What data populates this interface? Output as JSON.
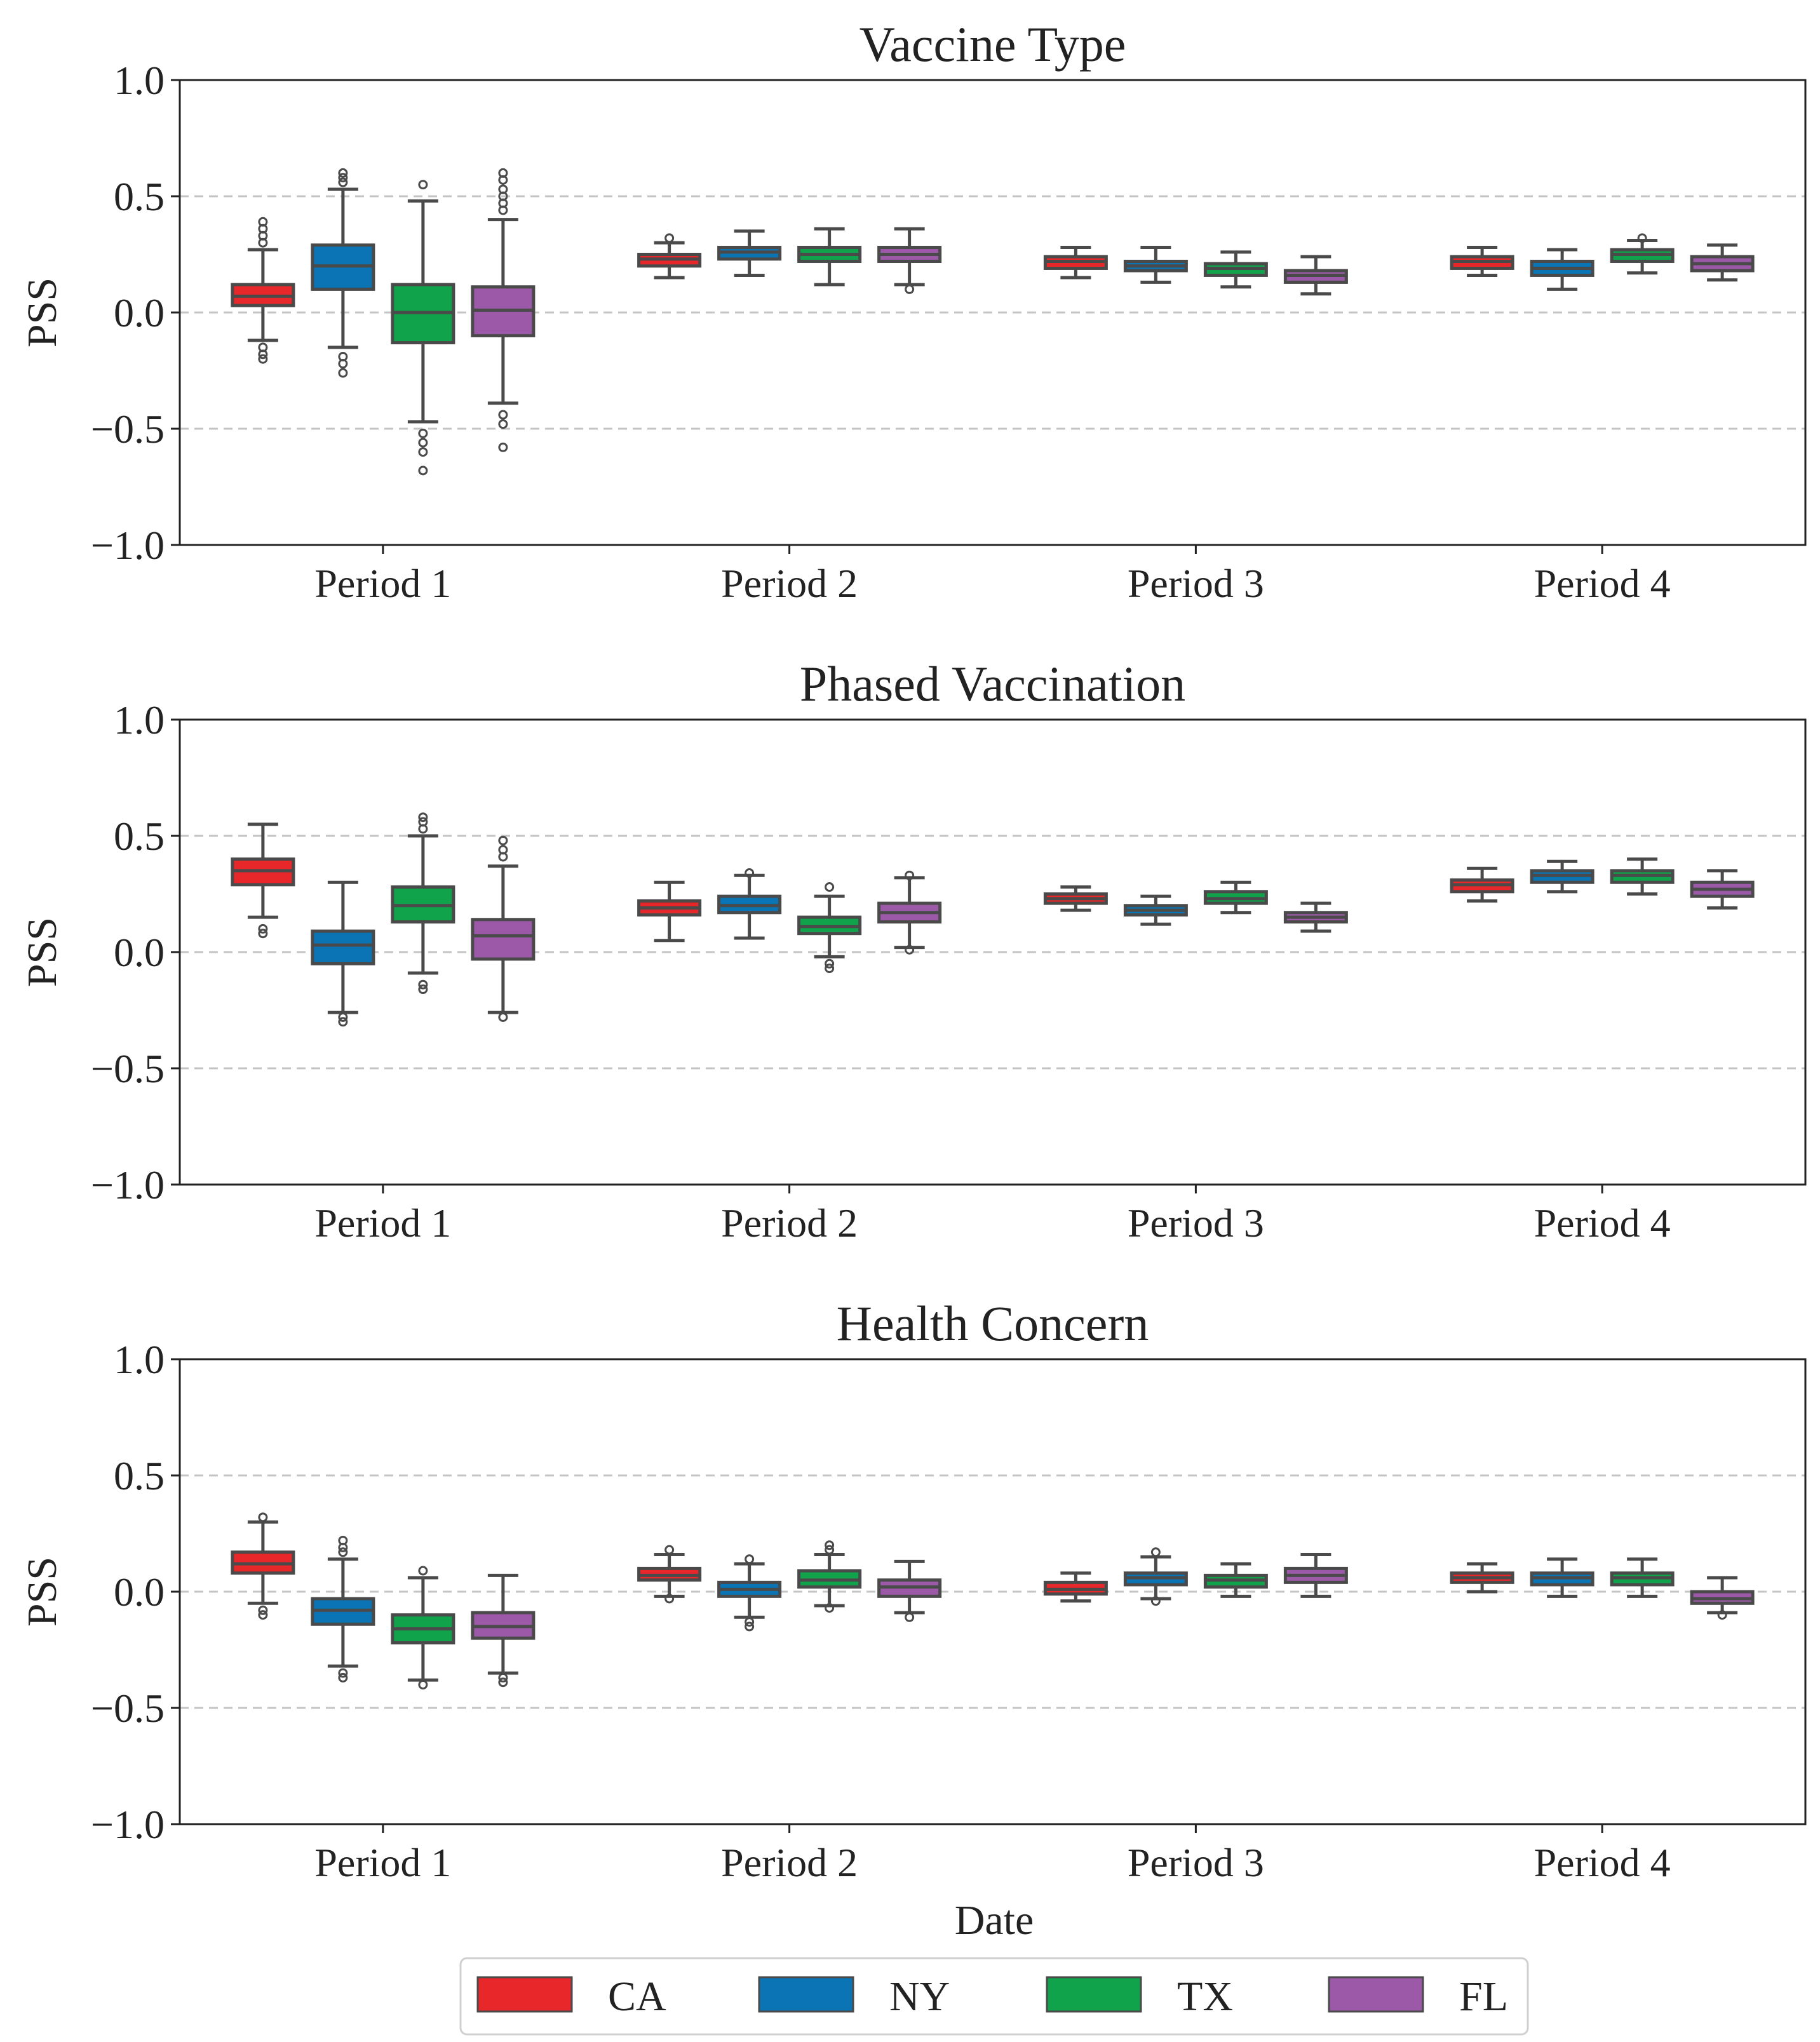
{
  "chart_data": {
    "type": "boxplot",
    "xlabel": "Date",
    "ylabel": "PSS",
    "ylim": [
      -1.0,
      1.0
    ],
    "yticks": [
      1.0,
      0.5,
      0.0,
      -0.5,
      -1.0
    ],
    "ytick_labels": [
      "1.0",
      "0.5",
      "0.0",
      "−0.5",
      "−1.0"
    ],
    "gridlines": [
      0.5,
      0.0,
      -0.5
    ],
    "categories": [
      "Period 1",
      "Period 2",
      "Period 3",
      "Period 4"
    ],
    "series": [
      {
        "name": "CA",
        "color": "#e8272a"
      },
      {
        "name": "NY",
        "color": "#0a74b4"
      },
      {
        "name": "TX",
        "color": "#11a34b"
      },
      {
        "name": "FL",
        "color": "#9b59a8"
      }
    ],
    "legend": {
      "position": "bottom-center"
    },
    "panels": [
      {
        "title": "Vaccine Type",
        "boxes": [
          [
            {
              "min": -0.12,
              "q1": 0.03,
              "median": 0.07,
              "q3": 0.12,
              "max": 0.27,
              "outliers": [
                0.3,
                0.33,
                0.36,
                0.39,
                -0.15,
                -0.18,
                -0.2
              ]
            },
            {
              "min": -0.15,
              "q1": 0.1,
              "median": 0.2,
              "q3": 0.29,
              "max": 0.53,
              "outliers": [
                0.56,
                0.58,
                0.6,
                -0.19,
                -0.22,
                -0.26
              ]
            },
            {
              "min": -0.47,
              "q1": -0.13,
              "median": 0.0,
              "q3": 0.12,
              "max": 0.48,
              "outliers": [
                0.55,
                -0.52,
                -0.56,
                -0.6,
                -0.68
              ]
            },
            {
              "min": -0.39,
              "q1": -0.1,
              "median": 0.01,
              "q3": 0.11,
              "max": 0.4,
              "outliers": [
                0.44,
                0.47,
                0.5,
                0.53,
                0.57,
                0.6,
                -0.44,
                -0.48,
                -0.58
              ]
            }
          ],
          [
            {
              "min": 0.15,
              "q1": 0.2,
              "median": 0.23,
              "q3": 0.25,
              "max": 0.3,
              "outliers": [
                0.32
              ]
            },
            {
              "min": 0.16,
              "q1": 0.23,
              "median": 0.26,
              "q3": 0.28,
              "max": 0.35,
              "outliers": []
            },
            {
              "min": 0.12,
              "q1": 0.22,
              "median": 0.25,
              "q3": 0.28,
              "max": 0.36,
              "outliers": []
            },
            {
              "min": 0.12,
              "q1": 0.22,
              "median": 0.25,
              "q3": 0.28,
              "max": 0.36,
              "outliers": [
                0.1
              ]
            }
          ],
          [
            {
              "min": 0.15,
              "q1": 0.19,
              "median": 0.22,
              "q3": 0.24,
              "max": 0.28,
              "outliers": []
            },
            {
              "min": 0.13,
              "q1": 0.18,
              "median": 0.2,
              "q3": 0.22,
              "max": 0.28,
              "outliers": []
            },
            {
              "min": 0.11,
              "q1": 0.16,
              "median": 0.19,
              "q3": 0.21,
              "max": 0.26,
              "outliers": []
            },
            {
              "min": 0.08,
              "q1": 0.13,
              "median": 0.16,
              "q3": 0.18,
              "max": 0.24,
              "outliers": []
            }
          ],
          [
            {
              "min": 0.16,
              "q1": 0.19,
              "median": 0.22,
              "q3": 0.24,
              "max": 0.28,
              "outliers": []
            },
            {
              "min": 0.1,
              "q1": 0.16,
              "median": 0.19,
              "q3": 0.22,
              "max": 0.27,
              "outliers": []
            },
            {
              "min": 0.17,
              "q1": 0.22,
              "median": 0.25,
              "q3": 0.27,
              "max": 0.31,
              "outliers": [
                0.32
              ]
            },
            {
              "min": 0.14,
              "q1": 0.18,
              "median": 0.21,
              "q3": 0.24,
              "max": 0.29,
              "outliers": []
            }
          ]
        ]
      },
      {
        "title": "Phased Vaccination",
        "boxes": [
          [
            {
              "min": 0.15,
              "q1": 0.29,
              "median": 0.35,
              "q3": 0.4,
              "max": 0.55,
              "outliers": [
                0.1,
                0.08
              ]
            },
            {
              "min": -0.26,
              "q1": -0.05,
              "median": 0.03,
              "q3": 0.09,
              "max": 0.3,
              "outliers": [
                -0.28,
                -0.3
              ]
            },
            {
              "min": -0.09,
              "q1": 0.13,
              "median": 0.2,
              "q3": 0.28,
              "max": 0.5,
              "outliers": [
                0.53,
                0.56,
                0.58,
                -0.14,
                -0.16
              ]
            },
            {
              "min": -0.26,
              "q1": -0.03,
              "median": 0.07,
              "q3": 0.14,
              "max": 0.37,
              "outliers": [
                0.41,
                0.44,
                0.48,
                -0.28
              ]
            }
          ],
          [
            {
              "min": 0.05,
              "q1": 0.16,
              "median": 0.19,
              "q3": 0.22,
              "max": 0.3,
              "outliers": []
            },
            {
              "min": 0.06,
              "q1": 0.17,
              "median": 0.2,
              "q3": 0.24,
              "max": 0.33,
              "outliers": [
                0.34
              ]
            },
            {
              "min": -0.02,
              "q1": 0.08,
              "median": 0.11,
              "q3": 0.15,
              "max": 0.24,
              "outliers": [
                0.28,
                -0.05,
                -0.07
              ]
            },
            {
              "min": 0.02,
              "q1": 0.13,
              "median": 0.17,
              "q3": 0.21,
              "max": 0.32,
              "outliers": [
                0.33,
                0.01
              ]
            }
          ],
          [
            {
              "min": 0.18,
              "q1": 0.21,
              "median": 0.23,
              "q3": 0.25,
              "max": 0.28,
              "outliers": []
            },
            {
              "min": 0.12,
              "q1": 0.16,
              "median": 0.18,
              "q3": 0.2,
              "max": 0.24,
              "outliers": []
            },
            {
              "min": 0.17,
              "q1": 0.21,
              "median": 0.23,
              "q3": 0.26,
              "max": 0.3,
              "outliers": []
            },
            {
              "min": 0.09,
              "q1": 0.13,
              "median": 0.15,
              "q3": 0.17,
              "max": 0.21,
              "outliers": []
            }
          ],
          [
            {
              "min": 0.22,
              "q1": 0.26,
              "median": 0.29,
              "q3": 0.31,
              "max": 0.36,
              "outliers": []
            },
            {
              "min": 0.26,
              "q1": 0.3,
              "median": 0.33,
              "q3": 0.35,
              "max": 0.39,
              "outliers": []
            },
            {
              "min": 0.25,
              "q1": 0.3,
              "median": 0.33,
              "q3": 0.35,
              "max": 0.4,
              "outliers": []
            },
            {
              "min": 0.19,
              "q1": 0.24,
              "median": 0.27,
              "q3": 0.3,
              "max": 0.35,
              "outliers": []
            }
          ]
        ]
      },
      {
        "title": "Health Concern",
        "boxes": [
          [
            {
              "min": -0.05,
              "q1": 0.08,
              "median": 0.12,
              "q3": 0.17,
              "max": 0.3,
              "outliers": [
                0.32,
                -0.08,
                -0.1
              ]
            },
            {
              "min": -0.32,
              "q1": -0.14,
              "median": -0.08,
              "q3": -0.03,
              "max": 0.14,
              "outliers": [
                0.17,
                0.19,
                0.22,
                -0.35,
                -0.37
              ]
            },
            {
              "min": -0.38,
              "q1": -0.22,
              "median": -0.16,
              "q3": -0.1,
              "max": 0.06,
              "outliers": [
                0.09,
                -0.4
              ]
            },
            {
              "min": -0.35,
              "q1": -0.2,
              "median": -0.15,
              "q3": -0.09,
              "max": 0.07,
              "outliers": [
                -0.37,
                -0.39
              ]
            }
          ],
          [
            {
              "min": -0.02,
              "q1": 0.05,
              "median": 0.07,
              "q3": 0.1,
              "max": 0.16,
              "outliers": [
                0.18,
                -0.03
              ]
            },
            {
              "min": -0.11,
              "q1": -0.02,
              "median": 0.01,
              "q3": 0.04,
              "max": 0.12,
              "outliers": [
                0.14,
                -0.13,
                -0.15
              ]
            },
            {
              "min": -0.06,
              "q1": 0.02,
              "median": 0.05,
              "q3": 0.09,
              "max": 0.16,
              "outliers": [
                0.18,
                0.2,
                -0.07
              ]
            },
            {
              "min": -0.09,
              "q1": -0.02,
              "median": 0.02,
              "q3": 0.05,
              "max": 0.13,
              "outliers": [
                -0.11
              ]
            }
          ],
          [
            {
              "min": -0.04,
              "q1": -0.01,
              "median": 0.01,
              "q3": 0.04,
              "max": 0.08,
              "outliers": []
            },
            {
              "min": -0.03,
              "q1": 0.03,
              "median": 0.06,
              "q3": 0.08,
              "max": 0.15,
              "outliers": [
                0.17,
                -0.04
              ]
            },
            {
              "min": -0.02,
              "q1": 0.02,
              "median": 0.05,
              "q3": 0.07,
              "max": 0.12,
              "outliers": []
            },
            {
              "min": -0.02,
              "q1": 0.04,
              "median": 0.07,
              "q3": 0.1,
              "max": 0.16,
              "outliers": []
            }
          ],
          [
            {
              "min": 0.0,
              "q1": 0.04,
              "median": 0.06,
              "q3": 0.08,
              "max": 0.12,
              "outliers": []
            },
            {
              "min": -0.02,
              "q1": 0.03,
              "median": 0.06,
              "q3": 0.08,
              "max": 0.14,
              "outliers": []
            },
            {
              "min": -0.02,
              "q1": 0.03,
              "median": 0.06,
              "q3": 0.08,
              "max": 0.14,
              "outliers": []
            },
            {
              "min": -0.09,
              "q1": -0.05,
              "median": -0.03,
              "q3": 0.0,
              "max": 0.06,
              "outliers": [
                -0.1
              ]
            }
          ]
        ]
      }
    ]
  }
}
